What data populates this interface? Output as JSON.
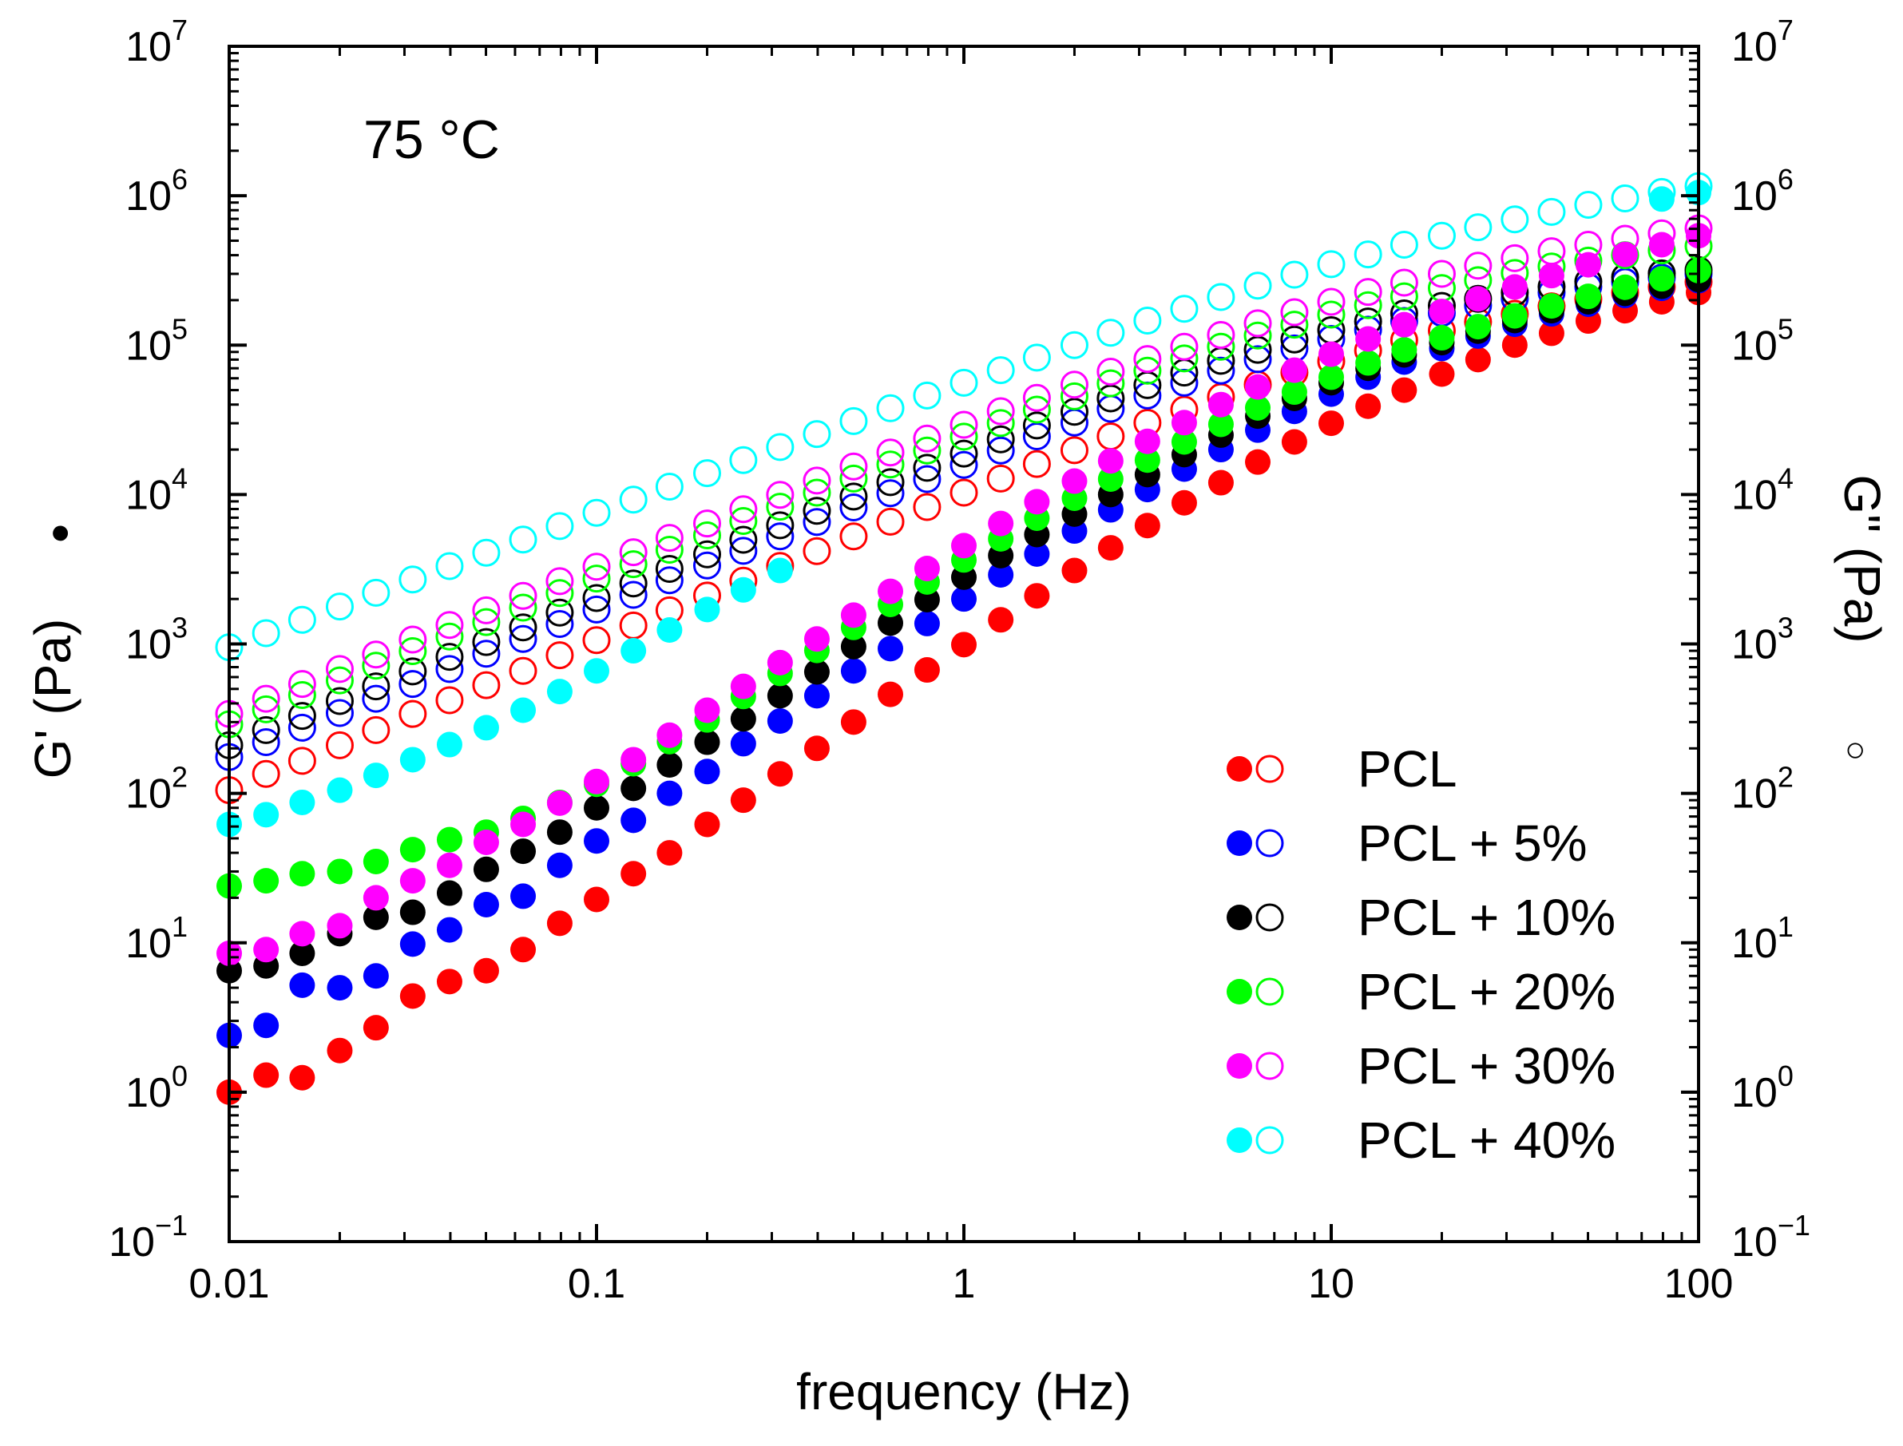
{
  "chart_data": {
    "type": "scatter",
    "annotation": "75 °C",
    "xlabel": "frequency (Hz)",
    "ylabel_left": "G' (Pa)",
    "ylabel_right": "G\" (Pa)",
    "ylabel_left_marker": "●",
    "ylabel_right_marker": "○",
    "xscale": "log",
    "yscale": "log",
    "xlim": [
      0.01,
      100
    ],
    "ylim": [
      0.1,
      10000000
    ],
    "x_ticks": [
      {
        "value": 0.01,
        "label": "0.01"
      },
      {
        "value": 0.1,
        "label": "0.1"
      },
      {
        "value": 1,
        "label": "1"
      },
      {
        "value": 10,
        "label": "10"
      },
      {
        "value": 100,
        "label": "100"
      }
    ],
    "y_ticks": [
      {
        "value": 0.1,
        "base": "10",
        "exp": "−1"
      },
      {
        "value": 1,
        "base": "10",
        "exp": "0"
      },
      {
        "value": 10,
        "base": "10",
        "exp": "1"
      },
      {
        "value": 100,
        "base": "10",
        "exp": "2"
      },
      {
        "value": 1000,
        "base": "10",
        "exp": "3"
      },
      {
        "value": 10000,
        "base": "10",
        "exp": "4"
      },
      {
        "value": 100000,
        "base": "10",
        "exp": "5"
      },
      {
        "value": 1000000,
        "base": "10",
        "exp": "6"
      },
      {
        "value": 10000000,
        "base": "10",
        "exp": "7"
      }
    ],
    "legend_position": "bottom-right",
    "x": [
      0.01,
      0.0126,
      0.0158,
      0.02,
      0.0251,
      0.0316,
      0.0398,
      0.0501,
      0.0631,
      0.0794,
      0.1,
      0.126,
      0.158,
      0.2,
      0.251,
      0.316,
      0.398,
      0.501,
      0.631,
      0.794,
      1,
      1.26,
      1.58,
      2,
      2.51,
      3.16,
      3.98,
      5.01,
      6.31,
      7.94,
      10,
      12.6,
      15.8,
      20,
      25.1,
      31.6,
      39.8,
      50.1,
      63.1,
      79.4,
      100
    ],
    "series": [
      {
        "name": "PCL",
        "color": "#ff0000",
        "G_prime": [
          1.0,
          1.3,
          1.25,
          1.9,
          2.7,
          4.4,
          5.5,
          6.5,
          9,
          13.5,
          19.5,
          29,
          40,
          62,
          90,
          135,
          200,
          300,
          460,
          670,
          990,
          1450,
          2100,
          3100,
          4400,
          6200,
          8800,
          12000,
          16500,
          22500,
          30000,
          39000,
          50000,
          64000,
          80000,
          100000,
          120000,
          145000,
          170000,
          195000,
          225000
        ],
        "G_double_prime": [
          105,
          135,
          165,
          210,
          265,
          340,
          420,
          530,
          660,
          840,
          1060,
          1330,
          1680,
          2110,
          2650,
          3330,
          4180,
          5250,
          6580,
          8250,
          10300,
          12800,
          16000,
          19800,
          24500,
          30200,
          37000,
          45000,
          54500,
          65500,
          78000,
          92000,
          108000,
          125000,
          143000,
          162000,
          182000,
          203000,
          225000,
          245000,
          265000
        ]
      },
      {
        "name": "PCL + 5%",
        "color": "#0000ff",
        "G_prime": [
          2.4,
          2.8,
          5.2,
          5.0,
          6.0,
          9.8,
          12.2,
          18,
          20.5,
          33,
          48,
          66,
          100,
          140,
          215,
          305,
          450,
          660,
          930,
          1370,
          2000,
          2900,
          4000,
          5700,
          7900,
          10800,
          14800,
          20000,
          27000,
          36000,
          47000,
          61000,
          77000,
          95000,
          115000,
          138000,
          162000,
          188000,
          215000,
          240000,
          270000
        ],
        "G_double_prime": [
          175,
          220,
          275,
          345,
          430,
          540,
          680,
          860,
          1080,
          1360,
          1700,
          2130,
          2670,
          3350,
          4200,
          5250,
          6550,
          8200,
          10200,
          12700,
          15800,
          19700,
          24500,
          30300,
          37500,
          46000,
          56000,
          67500,
          80500,
          95000,
          110000,
          127000,
          145000,
          164000,
          184000,
          205000,
          225000,
          246000,
          265000,
          283000,
          300000
        ]
      },
      {
        "name": "PCL + 10%",
        "color": "#000000",
        "G_prime": [
          6.5,
          7.0,
          8.5,
          11.5,
          14.8,
          16,
          21.5,
          31,
          41,
          55,
          80,
          108,
          155,
          220,
          315,
          450,
          650,
          960,
          1380,
          1980,
          2800,
          3900,
          5400,
          7400,
          10000,
          13600,
          18500,
          25000,
          33500,
          44000,
          56000,
          70000,
          86000,
          104000,
          124000,
          146000,
          170000,
          195000,
          222000,
          248000,
          275000
        ],
        "G_double_prime": [
          210,
          265,
          330,
          415,
          520,
          655,
          820,
          1030,
          1290,
          1620,
          2030,
          2540,
          3180,
          3980,
          4980,
          6230,
          7780,
          9700,
          12100,
          15100,
          18800,
          23400,
          29000,
          35800,
          44000,
          54000,
          65500,
          78500,
          93000,
          109000,
          126000,
          144000,
          163000,
          183000,
          204000,
          225000,
          246000,
          266000,
          285000,
          302000,
          318000
        ]
      },
      {
        "name": "PCL + 20%",
        "color": "#00ff00",
        "G_prime": [
          24,
          26,
          29,
          30,
          35,
          42,
          49,
          55,
          68,
          87,
          115,
          158,
          222,
          310,
          445,
          635,
          905,
          1290,
          1840,
          2600,
          3650,
          5050,
          6950,
          9450,
          12700,
          17000,
          22500,
          29500,
          38000,
          48500,
          61000,
          76000,
          93000,
          112000,
          133000,
          157000,
          183000,
          212000,
          244000,
          278000,
          315000
        ],
        "G_double_prime": [
          290,
          365,
          455,
          570,
          715,
          895,
          1120,
          1400,
          1750,
          2190,
          2740,
          3420,
          4270,
          5330,
          6650,
          8290,
          10300,
          12800,
          15900,
          19700,
          24400,
          30100,
          37000,
          45400,
          55500,
          67500,
          81500,
          97500,
          116000,
          137000,
          160000,
          185000,
          212000,
          241000,
          272000,
          304000,
          336000,
          368000,
          400000,
          430000,
          460000
        ]
      },
      {
        "name": "PCL + 30%",
        "color": "#ff00ff",
        "G_prime": [
          8.5,
          9.0,
          11.5,
          13,
          20,
          26,
          33,
          47,
          62,
          86,
          120,
          168,
          245,
          360,
          520,
          750,
          1080,
          1560,
          2250,
          3200,
          4550,
          6400,
          8950,
          12300,
          16800,
          22700,
          30300,
          40000,
          52500,
          68000,
          87000,
          110000,
          137000,
          168000,
          204000,
          245000,
          292000,
          345000,
          405000,
          470000,
          540000
        ],
        "G_double_prime": [
          340,
          430,
          540,
          680,
          850,
          1070,
          1340,
          1680,
          2100,
          2630,
          3290,
          4110,
          5130,
          6400,
          7980,
          9950,
          12400,
          15400,
          19100,
          23700,
          29300,
          36100,
          44400,
          54400,
          66400,
          80700,
          97500,
          117000,
          140000,
          166000,
          195000,
          227000,
          262000,
          300000,
          340000,
          382000,
          425000,
          470000,
          515000,
          560000,
          605000
        ]
      },
      {
        "name": "PCL + 40%",
        "color": "#00ffff",
        "G_prime": [
          62,
          72,
          87,
          105,
          132,
          168,
          212,
          275,
          360,
          480,
          660,
          900,
          1240,
          1700,
          2300,
          3100,
          null,
          null,
          null,
          null,
          null,
          null,
          null,
          null,
          null,
          null,
          null,
          null,
          null,
          null,
          null,
          null,
          null,
          null,
          null,
          null,
          null,
          null,
          null,
          950000,
          1050000
        ],
        "G_double_prime": [
          950,
          1180,
          1450,
          1780,
          2200,
          2700,
          3320,
          4080,
          5000,
          6150,
          7550,
          9250,
          11300,
          13900,
          17000,
          20800,
          25400,
          31000,
          37800,
          46000,
          56000,
          68000,
          82500,
          100000,
          121000,
          146000,
          175000,
          210000,
          250000,
          296000,
          348000,
          405000,
          470000,
          540000,
          615000,
          695000,
          780000,
          870000,
          960000,
          1060000,
          1160000
        ]
      }
    ]
  }
}
